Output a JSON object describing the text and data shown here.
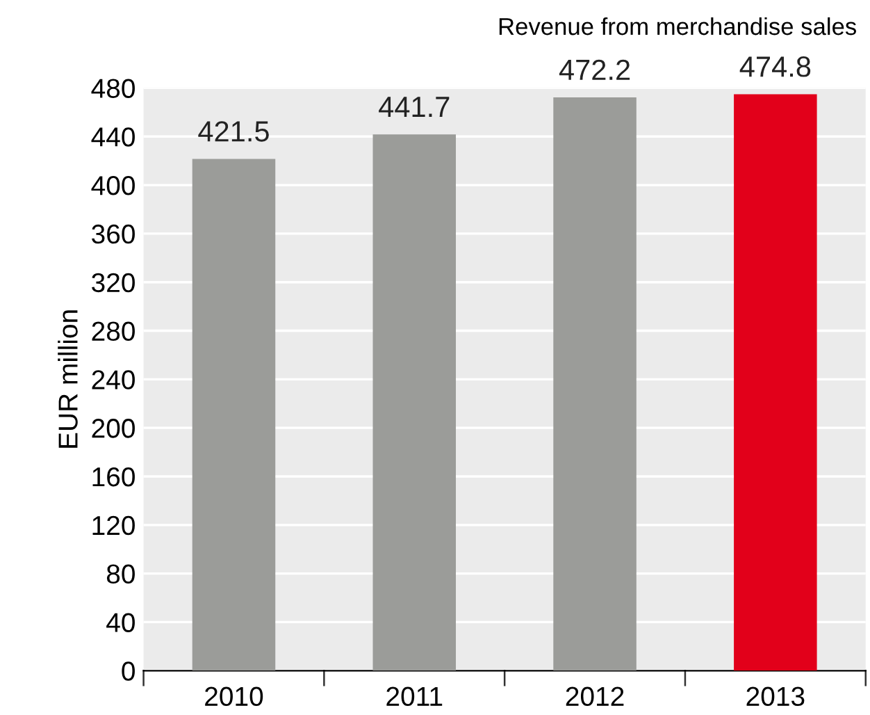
{
  "chart_data": {
    "type": "bar",
    "title": "Revenue from merchandise sales",
    "ylabel": "EUR million",
    "categories": [
      "2010",
      "2011",
      "2012",
      "2013"
    ],
    "values": [
      421.5,
      441.7,
      472.2,
      474.8
    ],
    "colors": [
      "#9b9c99",
      "#9b9c99",
      "#9b9c99",
      "#e2001a"
    ],
    "ylim": [
      0,
      480
    ],
    "yticks": [
      0,
      40,
      80,
      120,
      160,
      200,
      240,
      280,
      320,
      360,
      400,
      440,
      480
    ],
    "grid": "y",
    "data_labels": true,
    "legend": false
  }
}
